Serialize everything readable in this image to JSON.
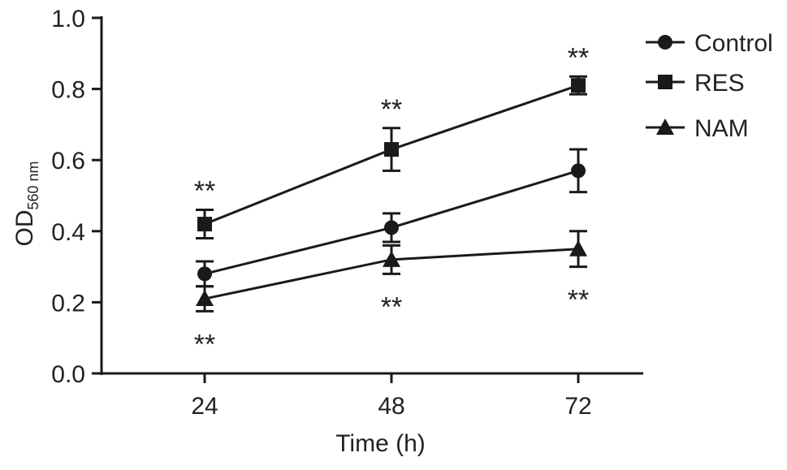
{
  "chart_data": {
    "type": "line",
    "title": "",
    "xlabel": "Time (h)",
    "ylabel": {
      "main": "OD",
      "subscript": "560 nm"
    },
    "x": [
      24,
      48,
      72
    ],
    "x_tick_labels": [
      "24",
      "48",
      "72"
    ],
    "ylim": [
      0.0,
      1.0
    ],
    "y_tick_labels": [
      "0.0",
      "0.2",
      "0.4",
      "0.6",
      "0.8",
      "1.0"
    ],
    "grid": false,
    "legend_position": "top-right",
    "series": [
      {
        "name": "Control",
        "marker": "circle",
        "values": [
          0.28,
          0.41,
          0.57
        ],
        "errors": [
          0.035,
          0.04,
          0.06
        ],
        "annotations": [
          "",
          "",
          ""
        ]
      },
      {
        "name": "RES",
        "marker": "square",
        "values": [
          0.42,
          0.63,
          0.81
        ],
        "errors": [
          0.04,
          0.06,
          0.025
        ],
        "annotations": [
          "**",
          "**",
          "**"
        ],
        "annotation_position": "above"
      },
      {
        "name": "NAM",
        "marker": "triangle",
        "values": [
          0.21,
          0.32,
          0.35
        ],
        "errors": [
          0.035,
          0.04,
          0.05
        ],
        "annotations": [
          "**",
          "**",
          "**"
        ],
        "annotation_position": "below"
      }
    ]
  },
  "colors": {
    "line": "#1a1a1a",
    "text": "#222222",
    "background": "#ffffff"
  }
}
